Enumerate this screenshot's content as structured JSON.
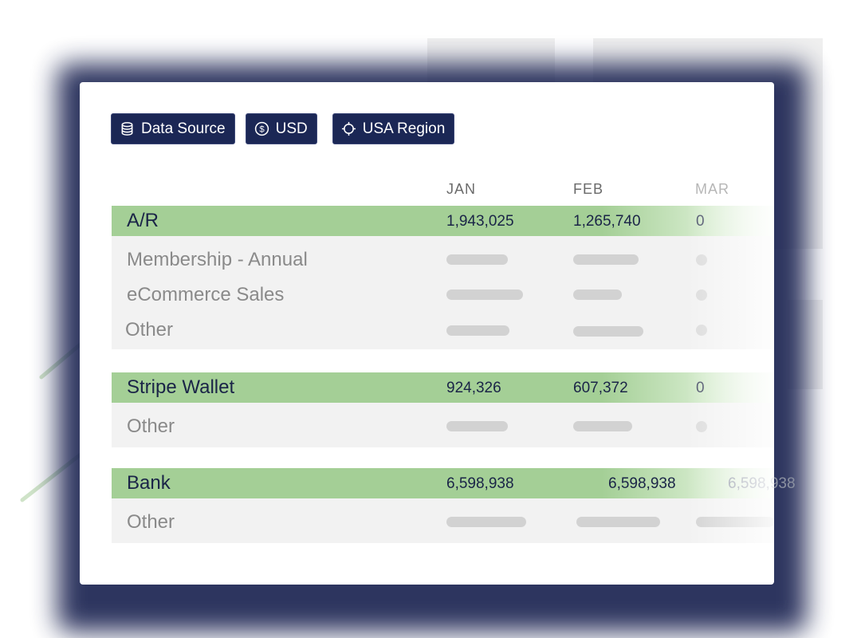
{
  "filters": {
    "data_source": "Data Source",
    "currency": "USD",
    "region": "USA Region"
  },
  "icons": {
    "data_source": "database-icon",
    "currency": "dollar-circle-icon",
    "region": "crosshair-icon"
  },
  "colors": {
    "chip_bg": "#1b2755",
    "group_row": "#a4cf96",
    "sub_row": "#f2f2f2"
  },
  "columns": [
    "JAN",
    "FEB",
    "MAR"
  ],
  "groups": [
    {
      "label": "A/R",
      "values": [
        "1,943,025",
        "1,265,740",
        "0"
      ],
      "subrows": [
        "Membership - Annual",
        "eCommerce Sales",
        "Other"
      ]
    },
    {
      "label": "Stripe Wallet",
      "values": [
        "924,326",
        "607,372",
        "0"
      ],
      "subrows": [
        "Other"
      ]
    },
    {
      "label": "Bank",
      "values": [
        "6,598,938",
        "6,598,938",
        "6,598,938"
      ],
      "subrows": [
        "Other"
      ]
    }
  ]
}
